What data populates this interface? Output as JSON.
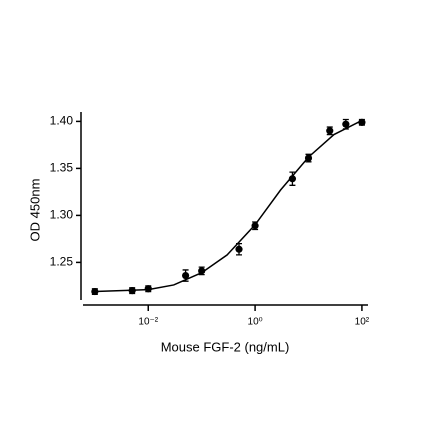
{
  "chart_data": {
    "type": "scatter",
    "x_label": "Mouse FGF-2 (ng/mL)",
    "y_label": "OD 450nm",
    "log_x": true,
    "color": "#000000",
    "x": [
      0.001,
      0.005,
      0.01,
      0.05,
      0.1,
      0.5,
      1,
      5,
      10,
      25,
      50,
      100
    ],
    "values": [
      1.219,
      1.22,
      1.222,
      1.236,
      1.241,
      1.264,
      1.289,
      1.339,
      1.361,
      1.39,
      1.397,
      1.399
    ],
    "errors": [
      0.003,
      0.003,
      0.003,
      0.006,
      0.004,
      0.006,
      0.004,
      0.007,
      0.004,
      0.004,
      0.005,
      0.003
    ],
    "fit": {
      "x": [
        0.001,
        0.003,
        0.01,
        0.03,
        0.1,
        0.3,
        1,
        3,
        10,
        30,
        100
      ],
      "values": [
        1.219,
        1.22,
        1.221,
        1.226,
        1.239,
        1.258,
        1.29,
        1.327,
        1.362,
        1.386,
        1.401
      ]
    },
    "xlim": [
      0.0006,
      130
    ],
    "xticks": [
      {
        "value": 0.01,
        "label": "10⁻²"
      },
      {
        "value": 1,
        "label": "10⁰"
      },
      {
        "value": 100,
        "label": "10²"
      }
    ],
    "ylim": [
      1.21,
      1.41
    ],
    "yticks": [
      1.25,
      {
        "value": 1.3,
        "label": "1.30"
      },
      1.35,
      {
        "value": 1.4,
        "label": "1.40"
      }
    ]
  }
}
